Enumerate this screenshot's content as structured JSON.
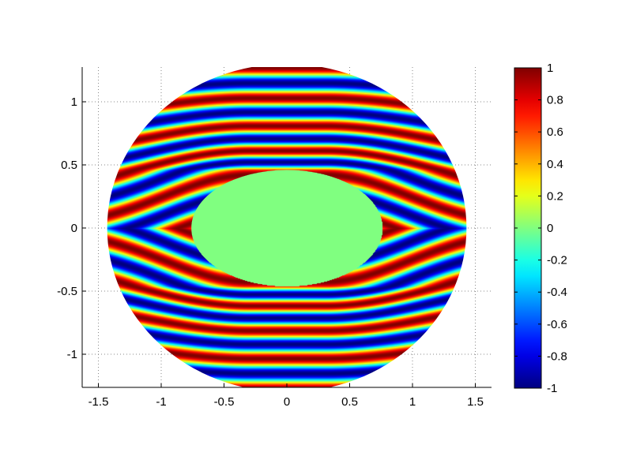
{
  "chart_data": {
    "type": "heatmap",
    "title": "",
    "xlabel": "",
    "ylabel": "",
    "xlim": [
      -1.65,
      1.65
    ],
    "ylim": [
      -1.27,
      1.27
    ],
    "x_ticks": [
      -1.5,
      -1,
      -0.5,
      0,
      0.5,
      1,
      1.5
    ],
    "x_tick_labels": [
      "-1.5",
      "-1",
      "-0.5",
      "0",
      "0.5",
      "1",
      "1.5"
    ],
    "y_ticks": [
      -1,
      -0.5,
      0,
      0.5,
      1
    ],
    "y_tick_labels": [
      "-1",
      "-0.5",
      "0",
      "0.5",
      "1"
    ],
    "grid": true,
    "domain": {
      "shape": "ellipse",
      "center": [
        0,
        0
      ],
      "semi_axes": [
        1.43,
        1.3
      ]
    },
    "obstacle": {
      "shape": "ellipse",
      "center": [
        0,
        0
      ],
      "semi_axes": [
        0.76,
        0.46
      ],
      "value": 0
    },
    "field": "sin(k*psi), psi = stream function of flow past elliptical obstacle",
    "stripes_per_unit_y": 3.4,
    "colormap": "jet",
    "colorbar": {
      "range": [
        -1,
        1
      ],
      "ticks": [
        1,
        0.8,
        0.6,
        0.4,
        0.2,
        0,
        -0.2,
        -0.4,
        -0.6,
        -0.8,
        -1
      ],
      "tick_labels": [
        "1",
        "0.8",
        "0.6",
        "0.4",
        "0.2",
        "0",
        "-0.2",
        "-0.4",
        "-0.6",
        "-0.8",
        "-1"
      ]
    }
  }
}
